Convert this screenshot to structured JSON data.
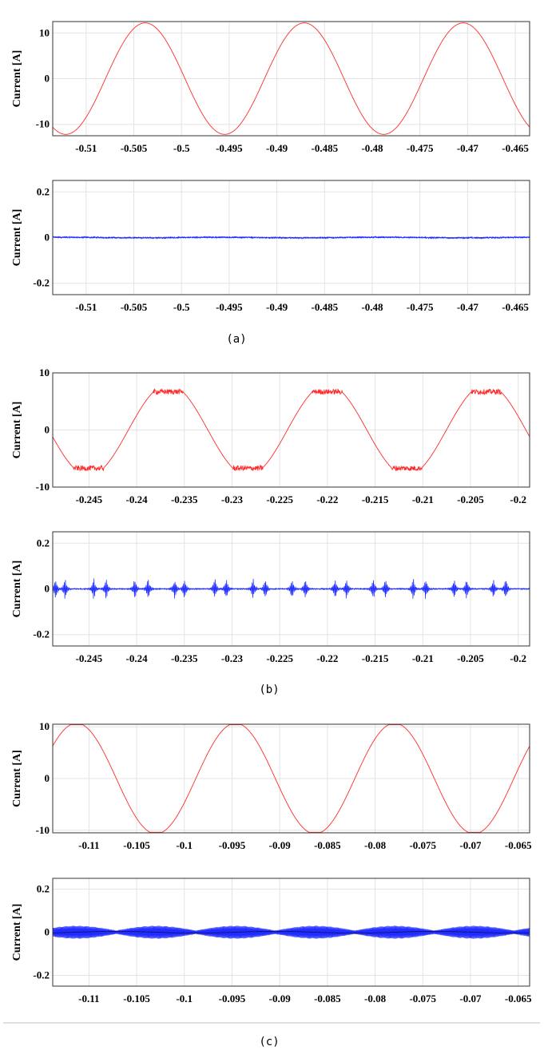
{
  "captions": [
    "(a)",
    "(b)",
    "(c)"
  ],
  "colors": {
    "fundamental": "#ff2b2b",
    "residual": "#1f2bff"
  },
  "chart_data": [
    {
      "type": "line",
      "panel": "a-top",
      "ylabel": "Current [A]",
      "xlim": [
        -0.5135,
        -0.4635
      ],
      "ylim": [
        -12.5,
        12.5
      ],
      "xticks": [
        -0.51,
        -0.505,
        -0.5,
        -0.495,
        -0.49,
        -0.485,
        -0.48,
        -0.475,
        -0.47,
        -0.465
      ],
      "xtick_labels": [
        "-0.51",
        "-0.505",
        "-0.5",
        "-0.495",
        "-0.49",
        "-0.485",
        "-0.48",
        "-0.475",
        "-0.47",
        "-0.465"
      ],
      "yticks": [
        -10,
        0,
        10
      ],
      "ytick_labels": [
        "-10",
        "0",
        "10"
      ],
      "grid": true,
      "series": [
        {
          "color": "#ff2b2b",
          "signal": "clipped-sine",
          "amplitude": 12.2,
          "period": 0.01667,
          "peak_at": -0.5038,
          "clip": 12.2,
          "noise": 0
        }
      ]
    },
    {
      "type": "line",
      "panel": "a-bottom",
      "ylabel": "Current [A]",
      "xlim": [
        -0.5135,
        -0.4635
      ],
      "ylim": [
        -0.25,
        0.25
      ],
      "xticks": [
        -0.51,
        -0.505,
        -0.5,
        -0.495,
        -0.49,
        -0.485,
        -0.48,
        -0.475,
        -0.47,
        -0.465
      ],
      "xtick_labels": [
        "-0.51",
        "-0.505",
        "-0.5",
        "-0.495",
        "-0.49",
        "-0.485",
        "-0.48",
        "-0.475",
        "-0.47",
        "-0.465"
      ],
      "yticks": [
        -0.2,
        0,
        0.2
      ],
      "ytick_labels": [
        "-0.2",
        "0",
        "0.2"
      ],
      "grid": true,
      "series": [
        {
          "color": "#1f2bff",
          "signal": "flat-noise",
          "amplitude": 0.003,
          "period": 0.01667,
          "noise": 0.003
        }
      ]
    },
    {
      "type": "line",
      "panel": "b-top",
      "ylabel": "Current [A]",
      "xlim": [
        -0.2488,
        -0.1988
      ],
      "ylim": [
        -10,
        10
      ],
      "xticks": [
        -0.245,
        -0.24,
        -0.235,
        -0.23,
        -0.225,
        -0.22,
        -0.215,
        -0.21,
        -0.205,
        -0.2
      ],
      "xtick_labels": [
        "-0.245",
        "-0.24",
        "-0.235",
        "-0.23",
        "-0.225",
        "-0.22",
        "-0.215",
        "-0.21",
        "-0.205",
        "-0.2"
      ],
      "yticks": [
        -10,
        0,
        10
      ],
      "ytick_labels": [
        "-10",
        "0",
        "10"
      ],
      "grid": true,
      "series": [
        {
          "color": "#ff2b2b",
          "signal": "clipped-sine",
          "amplitude": 8.0,
          "period": 0.01667,
          "peak_at": -0.2367,
          "clip": 6.7,
          "noise": 0.15
        }
      ]
    },
    {
      "type": "line",
      "panel": "b-bottom",
      "ylabel": "Current [A]",
      "xlim": [
        -0.2488,
        -0.1988
      ],
      "ylim": [
        -0.25,
        0.25
      ],
      "xticks": [
        -0.245,
        -0.24,
        -0.235,
        -0.23,
        -0.225,
        -0.22,
        -0.215,
        -0.21,
        -0.205,
        -0.2
      ],
      "xtick_labels": [
        "-0.245",
        "-0.24",
        "-0.235",
        "-0.23",
        "-0.225",
        "-0.22",
        "-0.215",
        "-0.21",
        "-0.205",
        "-0.2"
      ],
      "yticks": [
        -0.2,
        0,
        0.2
      ],
      "ytick_labels": [
        "-0.2",
        "0",
        "0.2"
      ],
      "grid": true,
      "series": [
        {
          "color": "#1f2bff",
          "signal": "spike-bursts",
          "amplitude": 0.045,
          "period": 0.01667,
          "bursts": [
            -0.2485,
            -0.2475,
            -0.2445,
            -0.2432,
            -0.2402,
            -0.2388,
            -0.236,
            -0.235,
            -0.2318,
            -0.2306,
            -0.2278,
            -0.2265,
            -0.2237,
            -0.2223,
            -0.2192,
            -0.218,
            -0.2152,
            -0.2139,
            -0.211,
            -0.2097,
            -0.2067,
            -0.2054,
            -0.2026,
            -0.2013
          ]
        }
      ]
    },
    {
      "type": "line",
      "panel": "c-top",
      "ylabel": "Current [A]",
      "xlim": [
        -0.1138,
        -0.0638
      ],
      "ylim": [
        -10.5,
        10.5
      ],
      "xticks": [
        -0.11,
        -0.105,
        -0.1,
        -0.095,
        -0.09,
        -0.085,
        -0.08,
        -0.075,
        -0.07,
        -0.065
      ],
      "xtick_labels": [
        "-0.11",
        "-0.105",
        "-0.1",
        "-0.095",
        "-0.09",
        "-0.085",
        "-0.08",
        "-0.075",
        "-0.07",
        "-0.065"
      ],
      "yticks": [
        -10,
        0,
        10
      ],
      "ytick_labels": [
        "-10",
        "0",
        "10"
      ],
      "grid": true,
      "series": [
        {
          "color": "#ff2b2b",
          "signal": "clipped-sine",
          "amplitude": 10.7,
          "period": 0.01667,
          "peak_at": -0.1113,
          "clip": 10.4,
          "noise": 0
        }
      ]
    },
    {
      "type": "line",
      "panel": "c-bottom",
      "ylabel": "Current [A]",
      "xlim": [
        -0.1138,
        -0.0638
      ],
      "ylim": [
        -0.25,
        0.25
      ],
      "xticks": [
        -0.11,
        -0.105,
        -0.1,
        -0.095,
        -0.09,
        -0.085,
        -0.08,
        -0.075,
        -0.07,
        -0.065
      ],
      "xtick_labels": [
        "-0.11",
        "-0.105",
        "-0.1",
        "-0.095",
        "-0.09",
        "-0.085",
        "-0.08",
        "-0.075",
        "-0.07",
        "-0.065"
      ],
      "yticks": [
        -0.2,
        0,
        0.2
      ],
      "ytick_labels": [
        "-0.2",
        "0",
        "0.2"
      ],
      "grid": true,
      "series": [
        {
          "color": "#1f2bff",
          "signal": "modulated-band",
          "amplitude": 0.03,
          "period": 0.01667,
          "peak_at": -0.1113
        }
      ]
    }
  ]
}
